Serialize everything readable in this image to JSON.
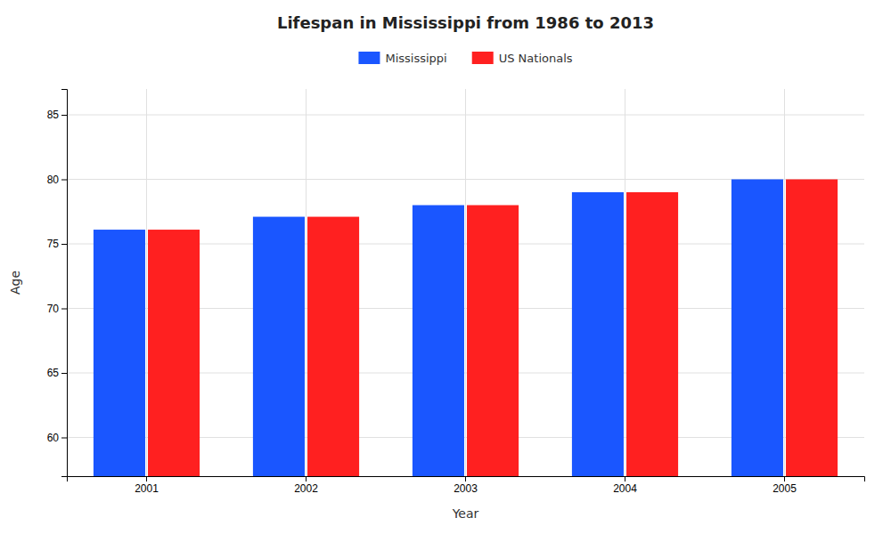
{
  "chart_data": {
    "type": "bar",
    "title": "Lifespan in Mississippi from 1986 to 2013",
    "xlabel": "Year",
    "ylabel": "Age",
    "categories": [
      "2001",
      "2002",
      "2003",
      "2004",
      "2005"
    ],
    "series": [
      {
        "name": "Mississippi",
        "color": "#1a56ff",
        "values": [
          76.1,
          77.1,
          78.0,
          79.0,
          80.0
        ]
      },
      {
        "name": "US Nationals",
        "color": "#ff2020",
        "values": [
          76.1,
          77.1,
          78.0,
          79.0,
          80.0
        ]
      }
    ],
    "ylim": [
      57,
      87
    ],
    "yticks": [
      60,
      65,
      70,
      75,
      80,
      85
    ],
    "grid": true
  }
}
